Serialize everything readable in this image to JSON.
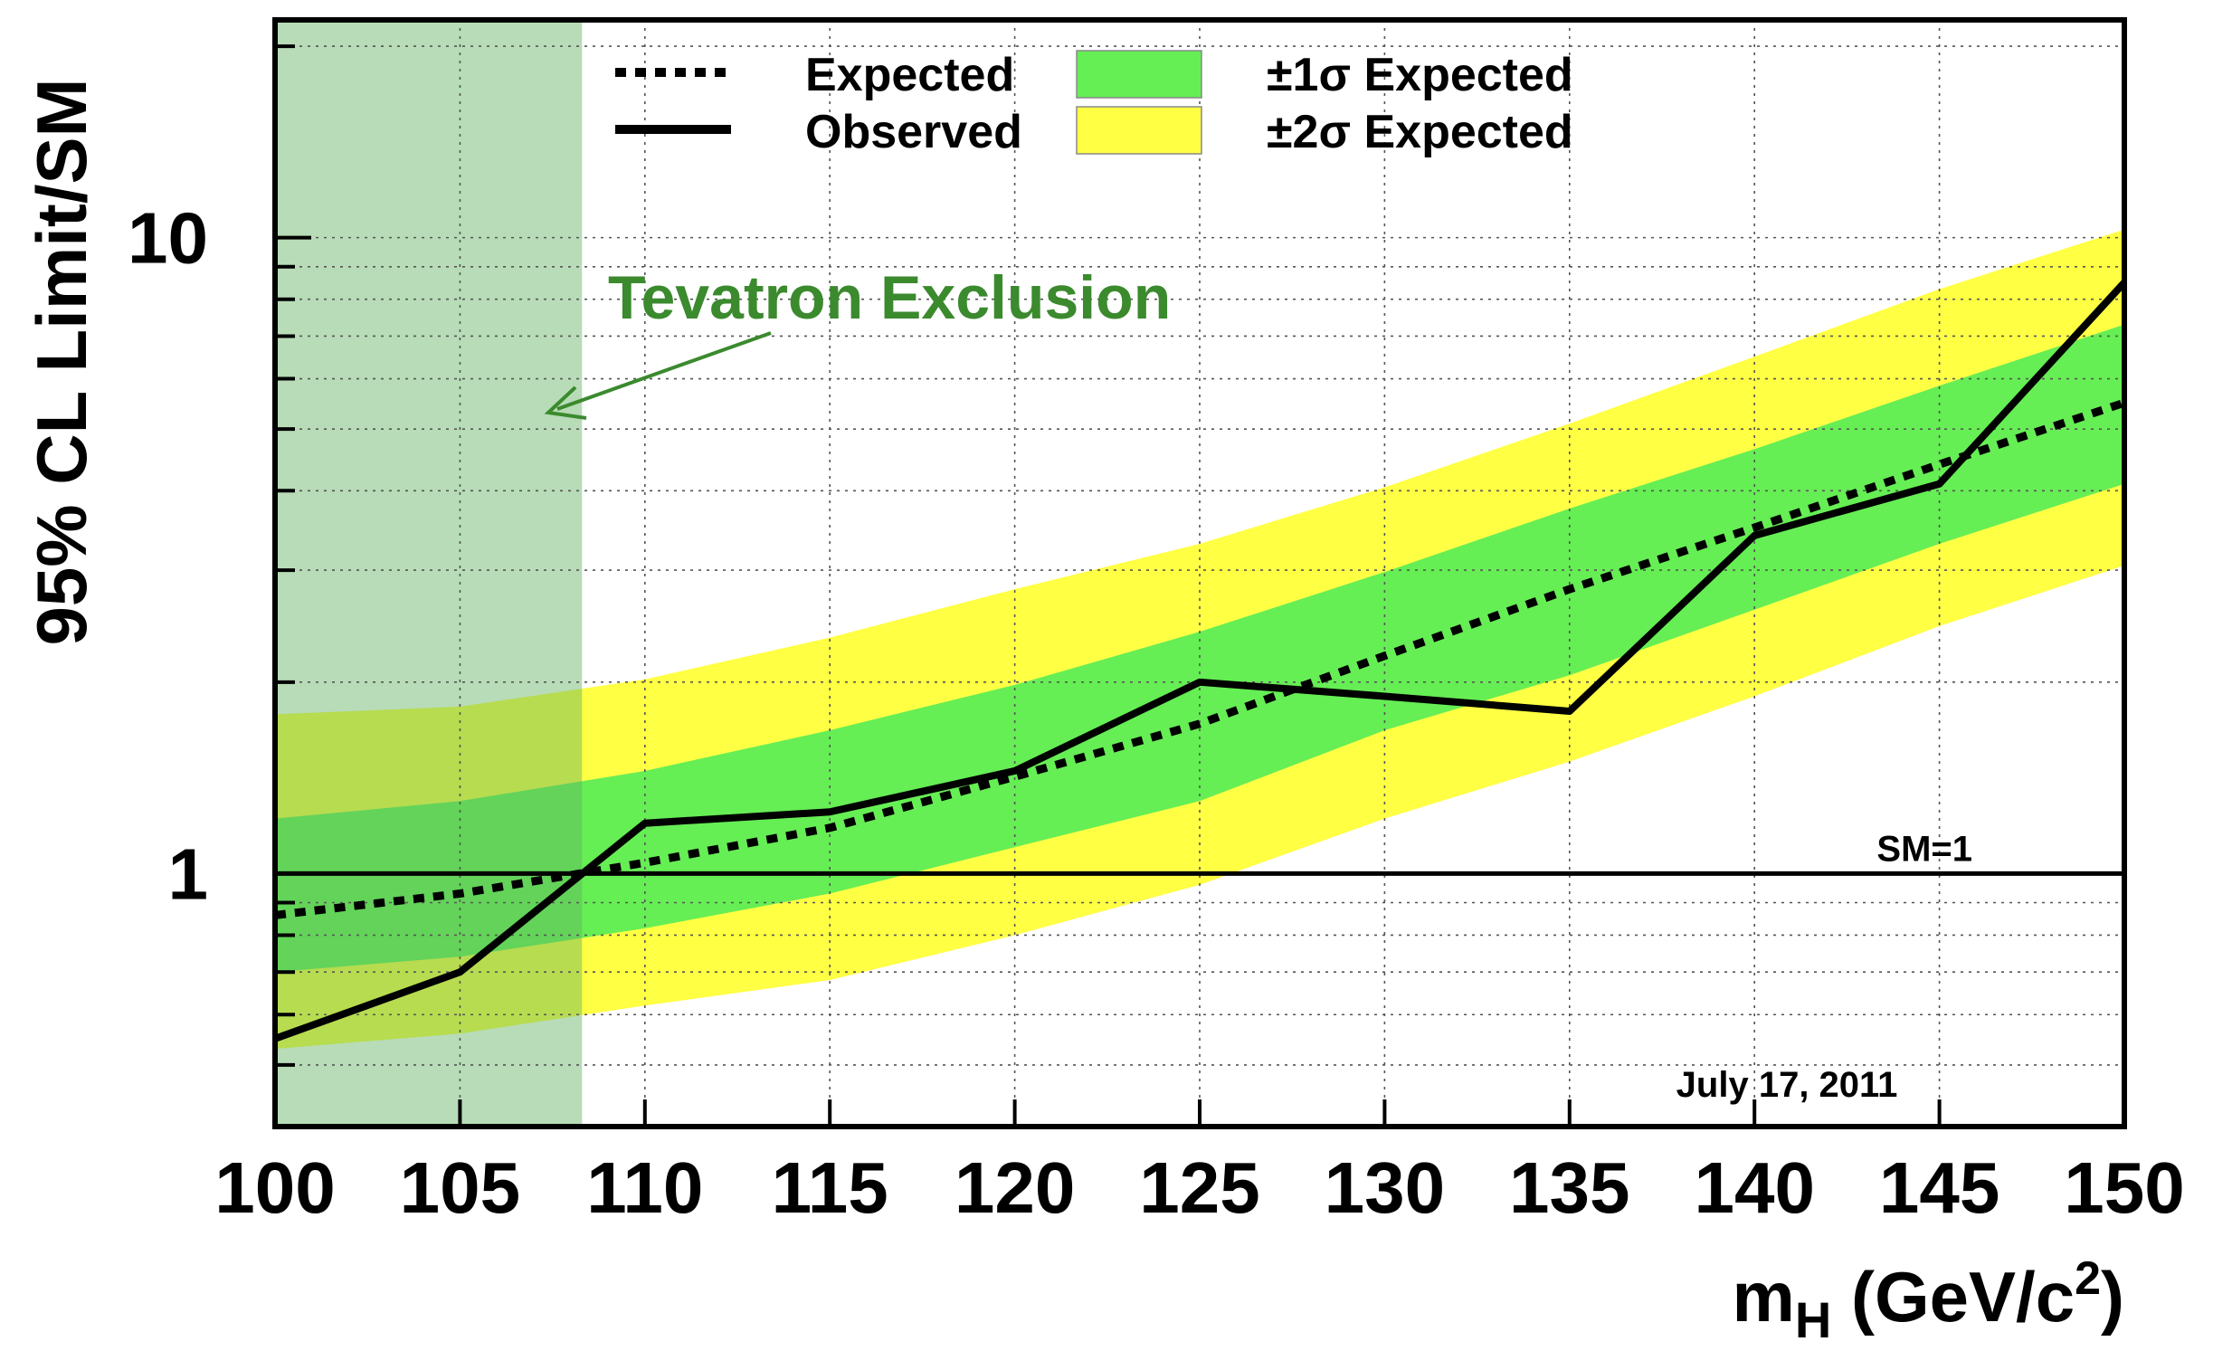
{
  "chart_data": {
    "type": "line",
    "title": "",
    "xlabel": "m",
    "xlabel_sub": "H",
    "xlabel_units": " (GeV/c",
    "xlabel_sup": "2",
    "xlabel_close": ")",
    "ylabel": "95% CL Limit/SM",
    "x": [
      100,
      105,
      110,
      115,
      120,
      125,
      130,
      135,
      140,
      145,
      150
    ],
    "xlim": [
      100,
      150
    ],
    "ylim": [
      0.4,
      22
    ],
    "yscale": "log",
    "x_ticks": [
      "100",
      "105",
      "110",
      "115",
      "120",
      "125",
      "130",
      "135",
      "140",
      "145",
      "150"
    ],
    "y_ticks": [
      {
        "value": 1,
        "label": "1"
      },
      {
        "value": 10,
        "label": "10"
      }
    ],
    "grid": true,
    "legend_position": "top",
    "series": [
      {
        "name": "Expected",
        "style": "dotted",
        "color": "#000000",
        "values": [
          0.86,
          0.93,
          1.04,
          1.18,
          1.42,
          1.72,
          2.2,
          2.8,
          3.5,
          4.4,
          5.5
        ]
      },
      {
        "name": "Observed",
        "style": "solid",
        "color": "#000000",
        "values": [
          0.55,
          0.7,
          1.2,
          1.25,
          1.45,
          2.0,
          1.9,
          1.8,
          3.4,
          4.1,
          8.5
        ]
      }
    ],
    "bands": [
      {
        "name": "±2σ Expected",
        "color": "#ffff44",
        "lower": [
          0.53,
          0.56,
          0.62,
          0.68,
          0.8,
          0.96,
          1.22,
          1.5,
          1.9,
          2.45,
          3.05
        ],
        "upper": [
          1.78,
          1.83,
          2.02,
          2.35,
          2.8,
          3.3,
          4.05,
          5.1,
          6.5,
          8.3,
          10.3
        ]
      },
      {
        "name": "±1σ Expected",
        "color": "#66ee55",
        "lower": [
          0.7,
          0.74,
          0.82,
          0.93,
          1.1,
          1.3,
          1.68,
          2.05,
          2.6,
          3.3,
          4.1
        ],
        "upper": [
          1.22,
          1.3,
          1.45,
          1.68,
          1.98,
          2.4,
          2.98,
          3.75,
          4.65,
          5.85,
          7.3
        ]
      }
    ],
    "shaded_region": {
      "label": "Tevatron Exclusion",
      "x_range": [
        100,
        108.3
      ],
      "color": "#b3dcb3",
      "label_color": "#3b8a2e"
    },
    "reference_line": {
      "y": 1,
      "label": "SM=1"
    },
    "annotations": [
      "July 17, 2011"
    ]
  }
}
